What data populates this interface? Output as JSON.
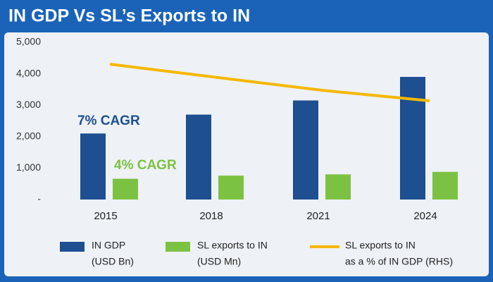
{
  "chart_data": {
    "type": "bar",
    "title": "IN GDP Vs SL’s Exports to IN",
    "categories": [
      "2015",
      "2018",
      "2021",
      "2024"
    ],
    "ylim": [
      0,
      5000
    ],
    "yticks": [
      {
        "value": 0,
        "label": "-"
      },
      {
        "value": 1000,
        "label": "1,000"
      },
      {
        "value": 2000,
        "label": "2,000"
      },
      {
        "value": 3000,
        "label": "3,000"
      },
      {
        "value": 4000,
        "label": "4,000"
      },
      {
        "value": 5000,
        "label": "5,000"
      }
    ],
    "y2lim": [
      0,
      0.036
    ],
    "grid": false,
    "series": [
      {
        "name": "IN GDP",
        "legend_note": "(USD Bn)",
        "type": "bar",
        "color": "#1d4f91",
        "values": [
          2100,
          2700,
          3150,
          3900
        ]
      },
      {
        "name": "SL exports to IN",
        "legend_note": "(USD Mn)",
        "type": "bar",
        "color": "#7cc242",
        "values": [
          660,
          760,
          800,
          880
        ]
      },
      {
        "name": "SL exports to IN",
        "legend_note": "as a % of IN GDP (RHS)",
        "type": "line",
        "axis": "y2",
        "color": "#f5b800",
        "values": [
          0.031,
          0.028,
          0.025,
          0.0226
        ]
      }
    ],
    "annotations": [
      {
        "text": "7% CAGR",
        "color": "#1d4f91"
      },
      {
        "text": "4% CAGR",
        "color": "#7cc242"
      }
    ]
  }
}
